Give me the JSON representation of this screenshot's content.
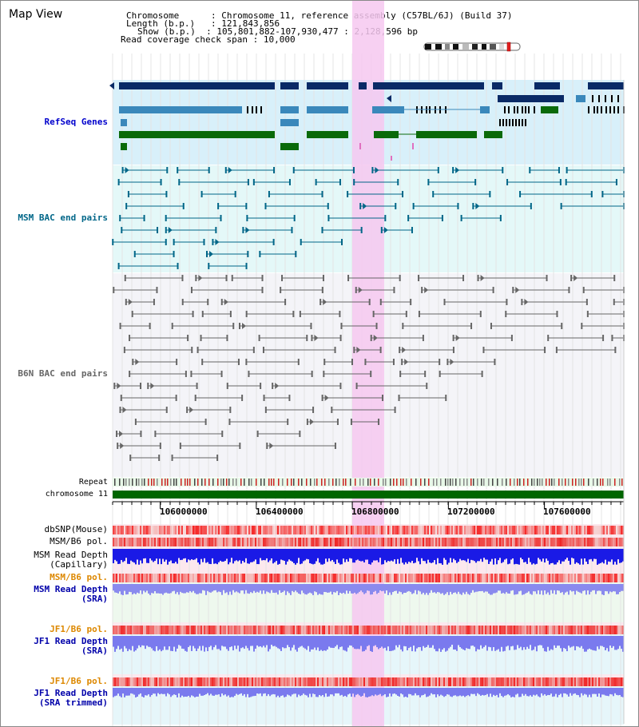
{
  "header": {
    "title": "Map View",
    "info_lines": [
      {
        "key": "Chromosome",
        "sep": " : ",
        "value": "Chromosome 11, reference assembly (C57BL/6J) (Build 37)"
      },
      {
        "key": "Length (b.p.)",
        "sep": " : ",
        "value": "121,843,856"
      },
      {
        "key": "Show (b.p.)",
        "sep": " : ",
        "value": "105,801,882-107,930,477 : 2,128,596 bp"
      },
      {
        "key": "Read coverage check span",
        "sep": " : ",
        "value": "10,000"
      }
    ]
  },
  "tracks": {
    "refseq": {
      "label": "RefSeq Genes",
      "color": "#0000cc",
      "bg": "#d8f0fa"
    },
    "msm_bac": {
      "label": "MSM BAC end pairs",
      "color": "#006688",
      "bg": "#e4f8f8"
    },
    "b6n_bac": {
      "label": "B6N BAC end pairs",
      "color": "#666666",
      "bg": "#f4f4f8"
    },
    "repeat": {
      "label": "Repeat"
    },
    "chromosome": {
      "label": "chromosome 11",
      "color": "#006600"
    }
  },
  "axis": {
    "ticks": [
      "106000000",
      "106400000",
      "106800000",
      "107200000",
      "107600000"
    ],
    "tick_values": [
      106000000,
      106400000,
      106800000,
      107200000,
      107600000
    ],
    "start": 105801882,
    "end": 107930477
  },
  "lower_tracks": [
    {
      "label": "dbSNP(Mouse)",
      "color": "#000000"
    },
    {
      "label": "MSM/B6 pol.",
      "color": "#000000"
    },
    {
      "label": "MSM Read Depth\n(Capillary)",
      "color": "#000000"
    },
    {
      "label": "MSM/B6 pol.",
      "color": "#dd8800"
    },
    {
      "label": "MSM Read Depth\n(SRA)",
      "color": "#0000aa"
    },
    {
      "label": "JF1/B6 pol.",
      "color": "#dd8800"
    },
    {
      "label": "JF1 Read Depth\n(SRA)",
      "color": "#0000aa"
    },
    {
      "label": "JF1/B6 pol.",
      "color": "#dd8800"
    },
    {
      "label": "JF1 Read Depth\n(SRA trimmed)",
      "color": "#0000aa"
    }
  ],
  "highlight_color": "#f6c8f0"
}
